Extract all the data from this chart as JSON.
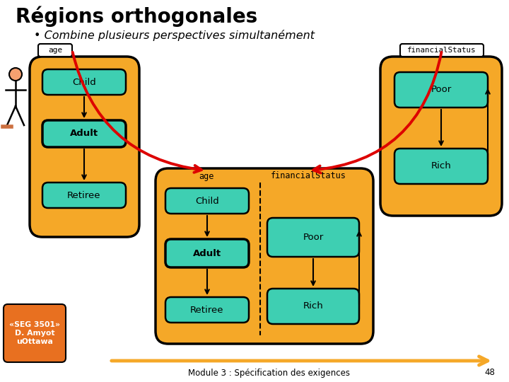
{
  "title": "Régions orthogonales",
  "subtitle": "• Combine plusieurs perspectives simultanément",
  "bg_color": "#ffffff",
  "orange_fill": "#f5a828",
  "teal_fill": "#3ecfb2",
  "red_arrow": "#dd0000",
  "black": "#000000",
  "footer_text": "Module 3 : Spécification des exigences",
  "footer_num": "48",
  "seg_label": "«SEG 3501»\nD. Amyot\nuOttawa",
  "seg_bg": "#e87020"
}
